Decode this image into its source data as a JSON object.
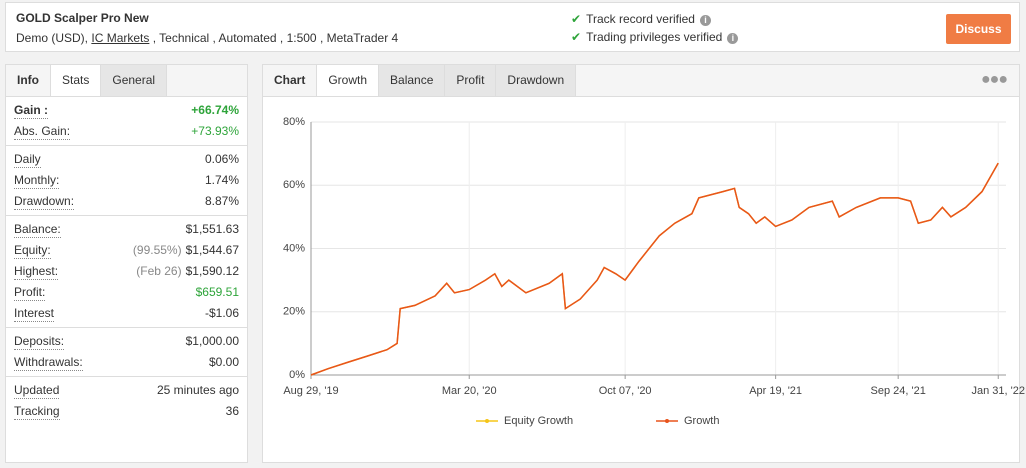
{
  "header": {
    "title": "GOLD Scalper Pro New",
    "subtitle_before": "Demo (USD),",
    "broker": "IC Markets",
    "subtitle_after": ", Technical , Automated , 1:500 , MetaTrader 4",
    "verified": [
      "Track record verified",
      "Trading privileges verified"
    ],
    "button": "Discuss"
  },
  "stats": {
    "tabs": [
      "Info",
      "Stats",
      "General"
    ],
    "active_tab": 1,
    "groups": [
      [
        {
          "label": "Gain :",
          "value": "+66.74%",
          "color": "#2ea43a",
          "bold": true
        },
        {
          "label": "Abs. Gain:",
          "value": "+73.93%",
          "color": "#2ea43a"
        }
      ],
      [
        {
          "label": "Daily",
          "value": "0.06%"
        },
        {
          "label": "Monthly:",
          "value": "1.74%"
        },
        {
          "label": "Drawdown:",
          "value": "8.87%"
        }
      ],
      [
        {
          "label": "Balance:",
          "value": "$1,551.63"
        },
        {
          "label": "Equity:",
          "note": "(99.55%)",
          "value": "$1,544.67"
        },
        {
          "label": "Highest:",
          "note": "(Feb 26)",
          "value": "$1,590.12"
        },
        {
          "label": "Profit:",
          "value": "$659.51",
          "color": "#2ea43a"
        },
        {
          "label": "Interest",
          "value": "-$1.06"
        }
      ],
      [
        {
          "label": "Deposits:",
          "value": "$1,000.00"
        },
        {
          "label": "Withdrawals:",
          "value": "$0.00"
        }
      ],
      [
        {
          "label": "Updated",
          "value": "25 minutes ago"
        },
        {
          "label": "Tracking",
          "value": "36"
        }
      ]
    ]
  },
  "chart_tabs": {
    "tabs": [
      "Chart",
      "Growth",
      "Balance",
      "Profit",
      "Drawdown"
    ],
    "active_tab": 1
  },
  "chart_data": {
    "type": "line",
    "x": [
      "2019-08-29",
      "2019-09-20",
      "2019-10-15",
      "2019-11-10",
      "2019-12-05",
      "2019-12-18",
      "2019-12-22",
      "2020-01-10",
      "2020-02-05",
      "2020-02-20",
      "2020-03-01",
      "2020-03-20",
      "2020-04-10",
      "2020-04-22",
      "2020-05-01",
      "2020-05-10",
      "2020-06-01",
      "2020-07-01",
      "2020-07-18",
      "2020-07-22",
      "2020-08-10",
      "2020-09-01",
      "2020-09-10",
      "2020-09-25",
      "2020-10-07",
      "2020-10-25",
      "2020-11-20",
      "2020-12-10",
      "2021-01-01",
      "2021-01-10",
      "2021-02-10",
      "2021-02-25",
      "2021-03-03",
      "2021-03-15",
      "2021-03-25",
      "2021-04-05",
      "2021-04-19",
      "2021-05-10",
      "2021-06-01",
      "2021-07-01",
      "2021-07-10",
      "2021-08-01",
      "2021-09-01",
      "2021-09-24",
      "2021-10-10",
      "2021-10-20",
      "2021-11-05",
      "2021-11-20",
      "2021-12-01",
      "2021-12-20",
      "2022-01-10",
      "2022-01-31"
    ],
    "series": [
      {
        "name": "Equity Growth",
        "color": "#f5c518",
        "values": [
          0,
          2,
          4,
          6,
          8,
          10,
          21,
          22,
          25,
          29,
          26,
          27,
          30,
          32,
          28,
          30,
          26,
          29,
          32,
          21,
          24,
          30,
          34,
          32,
          30,
          36,
          44,
          48,
          51,
          56,
          58,
          59,
          53,
          51,
          48,
          50,
          47,
          49,
          53,
          55,
          50,
          53,
          56,
          56,
          55,
          48,
          49,
          53,
          50,
          53,
          58,
          67
        ]
      },
      {
        "name": "Growth",
        "color": "#e8541c",
        "values": [
          0,
          2,
          4,
          6,
          8,
          10,
          21,
          22,
          25,
          29,
          26,
          27,
          30,
          32,
          28,
          30,
          26,
          29,
          32,
          21,
          24,
          30,
          34,
          32,
          30,
          36,
          44,
          48,
          51,
          56,
          58,
          59,
          53,
          51,
          48,
          50,
          47,
          49,
          53,
          55,
          50,
          53,
          56,
          56,
          55,
          48,
          49,
          53,
          50,
          53,
          58,
          67
        ]
      }
    ],
    "xlim": [
      "2019-08-29",
      "2022-02-10"
    ],
    "xticks": [
      {
        "value": "2019-08-29",
        "label": "Aug 29, '19"
      },
      {
        "value": "2020-03-20",
        "label": "Mar 20, '20"
      },
      {
        "value": "2020-10-07",
        "label": "Oct 07, '20"
      },
      {
        "value": "2021-04-19",
        "label": "Apr 19, '21"
      },
      {
        "value": "2021-09-24",
        "label": "Sep 24, '21"
      },
      {
        "value": "2022-01-31",
        "label": "Jan 31, '22"
      }
    ],
    "ylim": [
      0,
      80
    ],
    "yticks": [
      {
        "value": 0,
        "label": "0%"
      },
      {
        "value": 20,
        "label": "20%"
      },
      {
        "value": 40,
        "label": "40%"
      },
      {
        "value": 60,
        "label": "60%"
      },
      {
        "value": 80,
        "label": "80%"
      }
    ],
    "grid": true
  }
}
